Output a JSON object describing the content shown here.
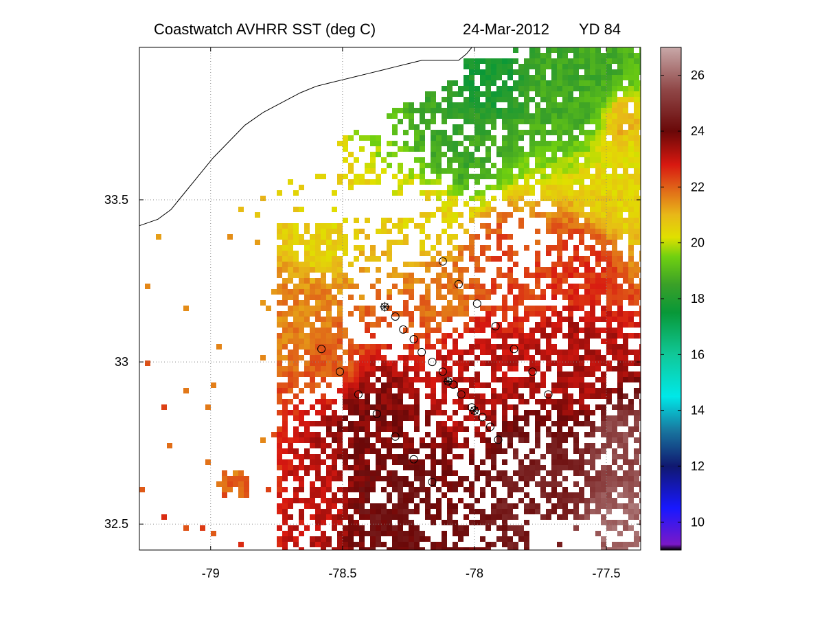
{
  "title": {
    "product": "Coastwatch   AVHRR   SST  (deg C)",
    "date": "24-Mar-2012",
    "yearday": "YD 84"
  },
  "map": {
    "lon_range": [
      -79.27,
      -77.37
    ],
    "lat_range": [
      32.42,
      33.97
    ],
    "lon_ticks": [
      {
        "value": -79,
        "label": "-79"
      },
      {
        "value": -78.5,
        "label": "-78.5"
      },
      {
        "value": -78,
        "label": "-78"
      },
      {
        "value": -77.5,
        "label": "-77.5"
      }
    ],
    "lat_ticks": [
      {
        "value": 33.5,
        "label": "33.5"
      },
      {
        "value": 33,
        "label": "33"
      },
      {
        "value": 32.5,
        "label": "32.5"
      }
    ],
    "grid": true,
    "grid_style": "dotted",
    "colors": {
      "grid": "#888888",
      "coastline": "#000000",
      "station_marker": "#000000"
    }
  },
  "colorbar": {
    "vmin": 9,
    "vmax": 27,
    "ticks": [
      {
        "value": 10,
        "label": "10"
      },
      {
        "value": 12,
        "label": "12"
      },
      {
        "value": 14,
        "label": "14"
      },
      {
        "value": 16,
        "label": "16"
      },
      {
        "value": 18,
        "label": "18"
      },
      {
        "value": 20,
        "label": "20"
      },
      {
        "value": 22,
        "label": "22"
      },
      {
        "value": 24,
        "label": "24"
      },
      {
        "value": 26,
        "label": "26"
      }
    ],
    "stops": [
      {
        "value": 9.0,
        "color": "#000000"
      },
      {
        "value": 9.2,
        "color": "#7a18c8"
      },
      {
        "value": 10.5,
        "color": "#1818ff"
      },
      {
        "value": 12.0,
        "color": "#101870"
      },
      {
        "value": 13.3,
        "color": "#1878a0"
      },
      {
        "value": 14.5,
        "color": "#00e8e8"
      },
      {
        "value": 16.0,
        "color": "#10c898"
      },
      {
        "value": 17.5,
        "color": "#089838"
      },
      {
        "value": 18.5,
        "color": "#3aa028"
      },
      {
        "value": 19.5,
        "color": "#70d010"
      },
      {
        "value": 20.2,
        "color": "#e0e000"
      },
      {
        "value": 21.0,
        "color": "#e8b818"
      },
      {
        "value": 22.0,
        "color": "#e06018"
      },
      {
        "value": 22.8,
        "color": "#d81810"
      },
      {
        "value": 24.0,
        "color": "#6a0808"
      },
      {
        "value": 25.5,
        "color": "#904848"
      },
      {
        "value": 27.0,
        "color": "#c8a8a8"
      }
    ]
  },
  "stations": [
    {
      "lon": -78.12,
      "lat": 33.31,
      "marker": "circle"
    },
    {
      "lon": -78.06,
      "lat": 33.24,
      "marker": "circle"
    },
    {
      "lon": -77.99,
      "lat": 33.18,
      "marker": "circle"
    },
    {
      "lon": -77.92,
      "lat": 33.11,
      "marker": "circle"
    },
    {
      "lon": -77.85,
      "lat": 33.04,
      "marker": "circle"
    },
    {
      "lon": -77.78,
      "lat": 32.97,
      "marker": "circle"
    },
    {
      "lon": -77.72,
      "lat": 32.9,
      "marker": "circle"
    },
    {
      "lon": -78.34,
      "lat": 33.17,
      "marker": "star"
    },
    {
      "lon": -78.3,
      "lat": 33.14,
      "marker": "circle"
    },
    {
      "lon": -78.27,
      "lat": 33.1,
      "marker": "circle"
    },
    {
      "lon": -78.23,
      "lat": 33.07,
      "marker": "circle"
    },
    {
      "lon": -78.2,
      "lat": 33.03,
      "marker": "circle"
    },
    {
      "lon": -78.16,
      "lat": 33.0,
      "marker": "circle"
    },
    {
      "lon": -78.12,
      "lat": 32.97,
      "marker": "circle"
    },
    {
      "lon": -78.1,
      "lat": 32.94,
      "marker": "star"
    },
    {
      "lon": -78.08,
      "lat": 32.93,
      "marker": "circle"
    },
    {
      "lon": -78.05,
      "lat": 32.9,
      "marker": "circle"
    },
    {
      "lon": -78.01,
      "lat": 32.86,
      "marker": "circle"
    },
    {
      "lon": -78.0,
      "lat": 32.85,
      "marker": "star"
    },
    {
      "lon": -77.97,
      "lat": 32.83,
      "marker": "circle"
    },
    {
      "lon": -77.94,
      "lat": 32.8,
      "marker": "circle"
    },
    {
      "lon": -77.91,
      "lat": 32.76,
      "marker": "circle"
    },
    {
      "lon": -78.58,
      "lat": 33.04,
      "marker": "circle"
    },
    {
      "lon": -78.51,
      "lat": 32.97,
      "marker": "circle"
    },
    {
      "lon": -78.44,
      "lat": 32.9,
      "marker": "circle"
    },
    {
      "lon": -78.37,
      "lat": 32.84,
      "marker": "circle"
    },
    {
      "lon": -78.3,
      "lat": 32.77,
      "marker": "circle"
    },
    {
      "lon": -78.23,
      "lat": 32.7,
      "marker": "circle"
    },
    {
      "lon": -78.16,
      "lat": 32.63,
      "marker": "circle"
    }
  ],
  "coastline": [
    [
      -79.27,
      33.42
    ],
    [
      -79.2,
      33.44
    ],
    [
      -79.15,
      33.47
    ],
    [
      -79.1,
      33.52
    ],
    [
      -79.05,
      33.57
    ],
    [
      -78.99,
      33.63
    ],
    [
      -78.93,
      33.68
    ],
    [
      -78.87,
      33.73
    ],
    [
      -78.8,
      33.77
    ],
    [
      -78.73,
      33.8
    ],
    [
      -78.66,
      33.83
    ],
    [
      -78.6,
      33.85
    ],
    [
      -78.55,
      33.86
    ],
    [
      -78.5,
      33.87
    ],
    [
      -78.45,
      33.88
    ],
    [
      -78.4,
      33.89
    ],
    [
      -78.35,
      33.9
    ],
    [
      -78.3,
      33.91
    ],
    [
      -78.25,
      33.92
    ],
    [
      -78.2,
      33.93
    ],
    [
      -78.15,
      33.93
    ],
    [
      -78.1,
      33.93
    ],
    [
      -78.06,
      33.93
    ],
    [
      -78.03,
      33.95
    ],
    [
      -78.01,
      33.97
    ]
  ]
}
